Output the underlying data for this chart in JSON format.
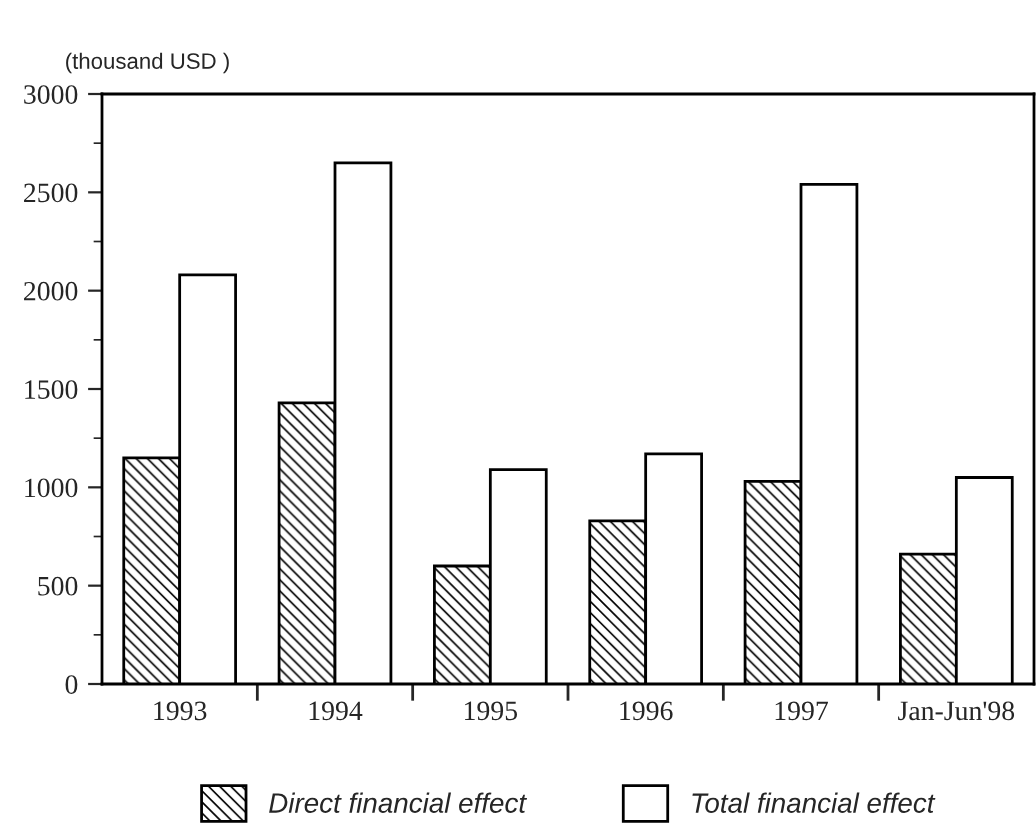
{
  "chart_data": {
    "type": "bar",
    "ylabel": "(thousand USD )",
    "categories": [
      "1993",
      "1994",
      "1995",
      "1996",
      "1997",
      "Jan-Jun'98"
    ],
    "series": [
      {
        "name": "Direct financial effect",
        "color": "#000000",
        "values": [
          1150,
          1430,
          600,
          830,
          1030,
          660
        ]
      },
      {
        "name": "Total financial effect",
        "color": "#ffffff",
        "values": [
          2080,
          2650,
          1090,
          1170,
          2540,
          1050
        ]
      }
    ],
    "ylim": [
      0,
      3000
    ],
    "yticks": [
      0,
      500,
      1000,
      1500,
      2000,
      2500,
      3000
    ],
    "grid": false,
    "legend": "bottom"
  }
}
